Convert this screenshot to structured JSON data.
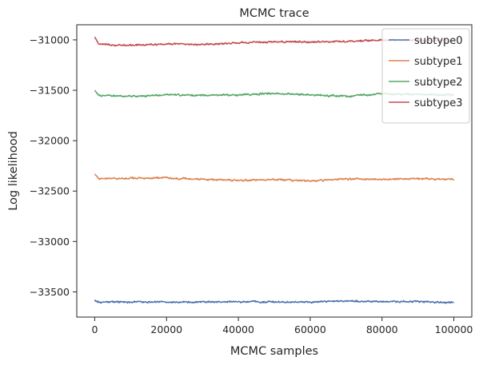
{
  "chart_data": {
    "type": "line",
    "title": "MCMC trace",
    "xlabel": "MCMC samples",
    "ylabel": "Log likelihood",
    "xlim": [
      -5000,
      105000
    ],
    "ylim": [
      -33750,
      -30850
    ],
    "xticks": [
      0,
      20000,
      40000,
      60000,
      80000,
      100000
    ],
    "xtick_labels": [
      "0",
      "20000",
      "40000",
      "60000",
      "80000",
      "100000"
    ],
    "yticks": [
      -33500,
      -33000,
      -32500,
      -32000,
      -31500,
      -31000
    ],
    "ytick_labels": [
      "−33500",
      "−33000",
      "−32500",
      "−32000",
      "−31500",
      "−31000"
    ],
    "grid": false,
    "legend_position": "top-right",
    "series": [
      {
        "name": "subtype0",
        "color": "#4c72b0",
        "x": [
          0,
          1000,
          5000,
          10000,
          20000,
          30000,
          40000,
          50000,
          60000,
          70000,
          80000,
          90000,
          100000
        ],
        "y": [
          -33580,
          -33605,
          -33600,
          -33598,
          -33600,
          -33602,
          -33598,
          -33600,
          -33598,
          -33590,
          -33598,
          -33596,
          -33605
        ]
      },
      {
        "name": "subtype1",
        "color": "#dd8452",
        "x": [
          0,
          1000,
          5000,
          10000,
          20000,
          30000,
          40000,
          50000,
          60000,
          70000,
          80000,
          90000,
          100000
        ],
        "y": [
          -32330,
          -32380,
          -32375,
          -32372,
          -32370,
          -32382,
          -32395,
          -32385,
          -32400,
          -32380,
          -32385,
          -32378,
          -32382
        ]
      },
      {
        "name": "subtype2",
        "color": "#55a868",
        "x": [
          0,
          1000,
          5000,
          10000,
          20000,
          30000,
          40000,
          50000,
          60000,
          70000,
          80000,
          90000,
          100000
        ],
        "y": [
          -31500,
          -31550,
          -31555,
          -31560,
          -31545,
          -31550,
          -31548,
          -31530,
          -31545,
          -31560,
          -31535,
          -31540,
          -31550
        ]
      },
      {
        "name": "subtype3",
        "color": "#c44e52",
        "x": [
          0,
          1000,
          5000,
          10000,
          20000,
          30000,
          40000,
          50000,
          60000,
          70000,
          80000,
          90000,
          100000
        ],
        "y": [
          -30970,
          -31040,
          -31050,
          -31055,
          -31040,
          -31045,
          -31030,
          -31020,
          -31020,
          -31015,
          -31000,
          -31005,
          -31010
        ]
      }
    ]
  }
}
